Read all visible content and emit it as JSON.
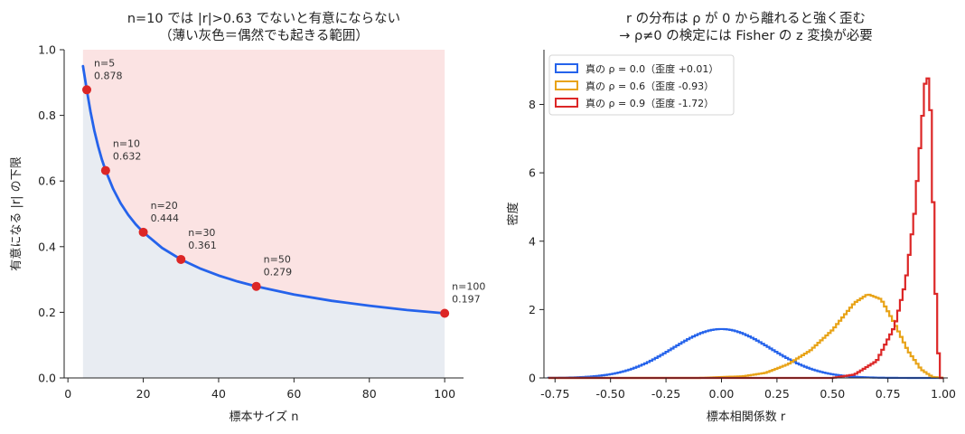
{
  "chart_data": [
    {
      "type": "line",
      "title": "n=10 では |r|>0.63 でないと有意にならない",
      "subtitle": "（薄い灰色＝偶然でも起きる範囲）",
      "xlabel": "標本サイズ n",
      "ylabel": "有意になる |r| の下限",
      "xlim": [
        -1,
        105
      ],
      "ylim": [
        0,
        1.0
      ],
      "xticks": [
        0,
        20,
        40,
        60,
        80,
        100
      ],
      "yticks": [
        0.0,
        0.2,
        0.4,
        0.6,
        0.8,
        1.0
      ],
      "x_labels": [
        "0",
        "20",
        "40",
        "60",
        "80",
        "100"
      ],
      "y_labels": [
        "0.0",
        "0.2",
        "0.4",
        "0.6",
        "0.8",
        "1.0"
      ],
      "grid": false,
      "colors": {
        "curve": "#2563eb",
        "points": "#dc2626",
        "region_above": "#fbe3e3",
        "region_below": "#e8ecf2"
      },
      "curve": {
        "x": [
          4,
          5,
          6,
          7,
          8,
          9,
          10,
          12,
          14,
          16,
          18,
          20,
          25,
          30,
          35,
          40,
          45,
          50,
          60,
          70,
          80,
          90,
          100
        ],
        "y": [
          0.95,
          0.878,
          0.811,
          0.754,
          0.707,
          0.666,
          0.632,
          0.576,
          0.532,
          0.497,
          0.468,
          0.444,
          0.396,
          0.361,
          0.334,
          0.312,
          0.294,
          0.279,
          0.254,
          0.235,
          0.22,
          0.207,
          0.197
        ]
      },
      "points": [
        {
          "n": 5,
          "r": 0.878,
          "label": "n=5",
          "value_label": "0.878"
        },
        {
          "n": 10,
          "r": 0.632,
          "label": "n=10",
          "value_label": "0.632"
        },
        {
          "n": 20,
          "r": 0.444,
          "label": "n=20",
          "value_label": "0.444"
        },
        {
          "n": 30,
          "r": 0.361,
          "label": "n=30",
          "value_label": "0.361"
        },
        {
          "n": 50,
          "r": 0.279,
          "label": "n=50",
          "value_label": "0.279"
        },
        {
          "n": 100,
          "r": 0.197,
          "label": "n=100",
          "value_label": "0.197"
        }
      ]
    },
    {
      "type": "histogram",
      "title": "r の分布は ρ が 0 から離れると強く歪む",
      "subtitle": "→ ρ≠0 の検定には Fisher の z 変換が必要",
      "xlabel": "標本相関係数 r",
      "ylabel": "密度",
      "xlim": [
        -0.8,
        1.02
      ],
      "ylim": [
        0,
        9.6
      ],
      "xticks": [
        -0.75,
        -0.5,
        -0.25,
        0.0,
        0.25,
        0.5,
        0.75,
        1.0
      ],
      "yticks": [
        0,
        2,
        4,
        6,
        8
      ],
      "x_labels": [
        "-0.75",
        "-0.50",
        "-0.25",
        "0.00",
        "0.25",
        "0.50",
        "0.75",
        "1.00"
      ],
      "y_labels": [
        "0",
        "2",
        "4",
        "6",
        "8"
      ],
      "grid": false,
      "legend_position": "top-left",
      "series": [
        {
          "name": "真の ρ = 0.0（歪度 +0.01）",
          "rho": 0.0,
          "skew": 0.01,
          "color": "#2563eb",
          "peak": 1.43,
          "sd": 0.22,
          "mode": 0.0
        },
        {
          "name": "真の ρ = 0.6（歪度 -0.93）",
          "rho": 0.6,
          "skew": -0.93,
          "color": "#e8a317",
          "peak": 2.45,
          "mode": 0.66
        },
        {
          "name": "真の ρ = 0.9（歪度 -1.72）",
          "rho": 0.9,
          "skew": -1.72,
          "color": "#dc2626",
          "peak": 9.15,
          "mode": 0.925
        }
      ]
    }
  ]
}
